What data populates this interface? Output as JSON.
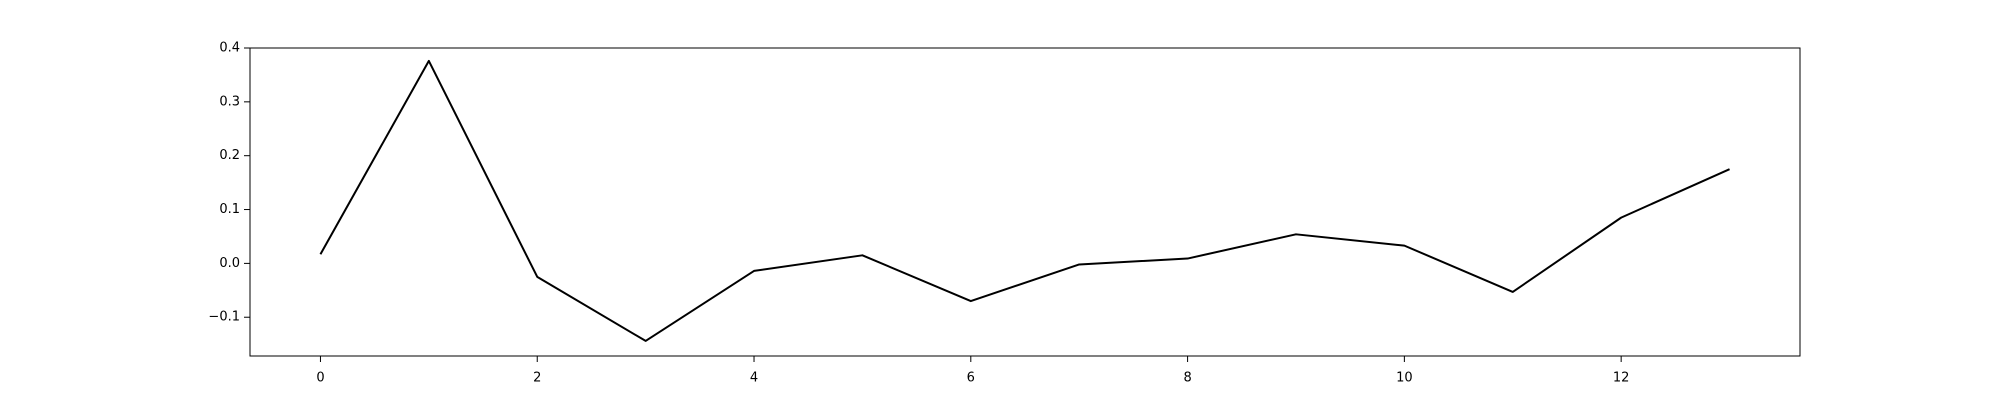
{
  "chart_data": {
    "type": "line",
    "title": "",
    "xlabel": "",
    "ylabel": "",
    "xlim": [
      -0.65,
      13.65
    ],
    "ylim": [
      -0.172,
      0.4
    ],
    "grid": false,
    "x": [
      0,
      1,
      2,
      3,
      4,
      5,
      6,
      7,
      8,
      9,
      10,
      11,
      12,
      13
    ],
    "series": [
      {
        "color": "#000000",
        "values": [
          0.017,
          0.376,
          -0.025,
          -0.144,
          -0.014,
          0.015,
          -0.07,
          -0.002,
          0.009,
          0.054,
          0.033,
          -0.053,
          0.085,
          0.175
        ]
      }
    ],
    "x_ticks": [
      0,
      2,
      4,
      6,
      8,
      10,
      12
    ],
    "x_tick_labels": [
      "0",
      "2",
      "4",
      "6",
      "8",
      "10",
      "12"
    ],
    "y_ticks": [
      -0.1,
      0.0,
      0.1,
      0.2,
      0.3,
      0.4
    ],
    "y_tick_labels": [
      "−0.1",
      "0.0",
      "0.1",
      "0.2",
      "0.3",
      "0.4"
    ]
  }
}
